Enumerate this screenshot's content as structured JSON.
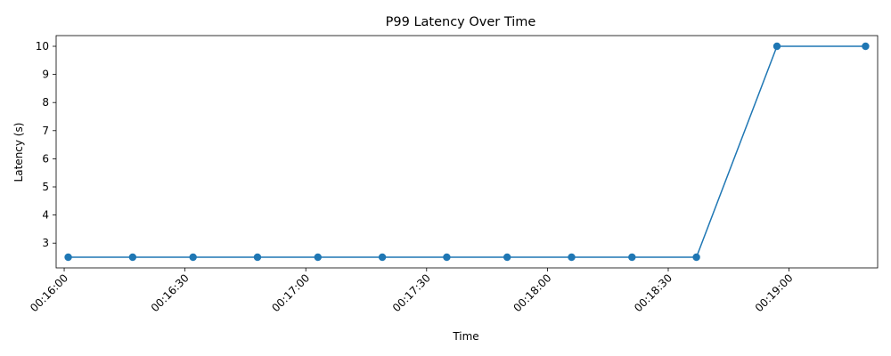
{
  "chart_data": {
    "type": "line",
    "title": "P99 Latency Over Time",
    "xlabel": "Time",
    "ylabel": "Latency (s)",
    "grid": false,
    "legend": "none",
    "x_range": [
      "00:15:58",
      "00:19:22"
    ],
    "ylim": [
      2.12,
      10.38
    ],
    "x_ticks": [
      "00:16:00",
      "00:16:30",
      "00:17:00",
      "00:17:30",
      "00:18:00",
      "00:18:30",
      "00:19:00"
    ],
    "y_ticks": [
      3,
      4,
      5,
      6,
      7,
      8,
      9,
      10
    ],
    "series": [
      {
        "color": "#1f77b4",
        "marker": "circle",
        "points": [
          {
            "x": "00:16:01",
            "y": 2.5
          },
          {
            "x": "00:16:17",
            "y": 2.5
          },
          {
            "x": "00:16:32",
            "y": 2.5
          },
          {
            "x": "00:16:48",
            "y": 2.5
          },
          {
            "x": "00:17:03",
            "y": 2.5
          },
          {
            "x": "00:17:19",
            "y": 2.5
          },
          {
            "x": "00:17:35",
            "y": 2.5
          },
          {
            "x": "00:17:50",
            "y": 2.5
          },
          {
            "x": "00:18:06",
            "y": 2.5
          },
          {
            "x": "00:18:21",
            "y": 2.5
          },
          {
            "x": "00:18:37",
            "y": 2.5
          },
          {
            "x": "00:18:57",
            "y": 10
          },
          {
            "x": "00:19:19",
            "y": 10
          }
        ]
      }
    ]
  }
}
